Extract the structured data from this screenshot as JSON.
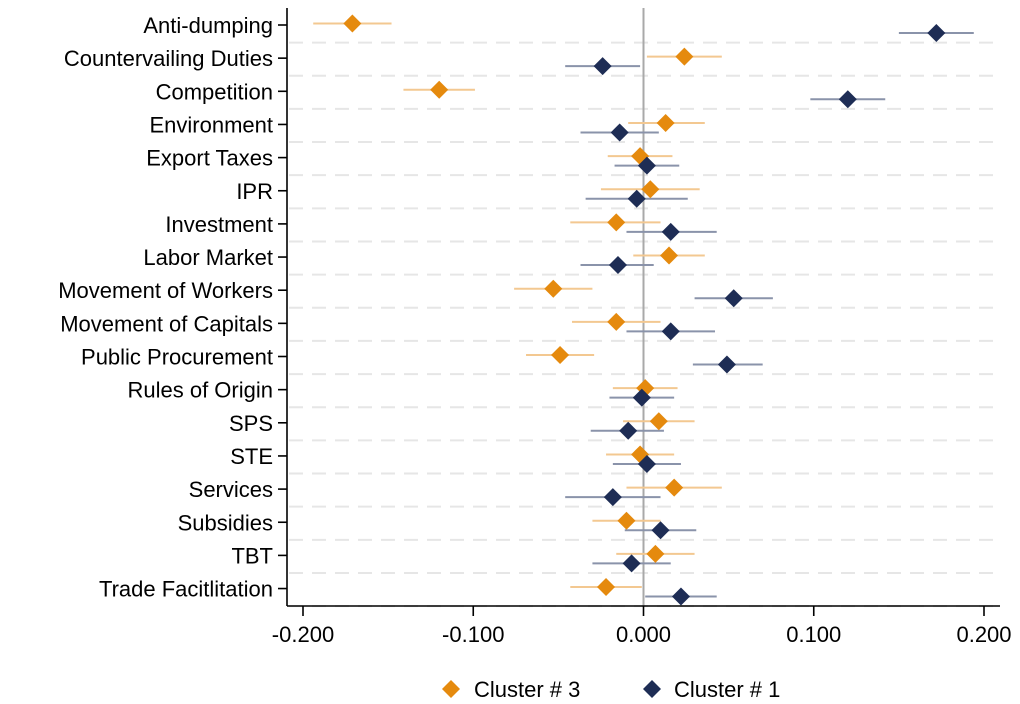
{
  "chart_data": {
    "type": "coefficient-plot",
    "title": "",
    "xlabel": "",
    "ylabel": "",
    "xlim": [
      -0.2,
      0.2
    ],
    "xticks": [
      -0.2,
      -0.1,
      0.0,
      0.1,
      0.2
    ],
    "xtick_labels": [
      "-0.200",
      "-0.100",
      "0.000",
      "0.100",
      "0.200"
    ],
    "reference_line": 0.0,
    "grid": "horizontal dashed",
    "legend_position": "bottom",
    "categories": [
      "Anti-dumping",
      "Countervailing Duties",
      "Competition",
      "Environment",
      "Export Taxes",
      "IPR",
      "Investment",
      "Labor Market",
      "Movement of Workers",
      "Movement of Capitals",
      "Public Procurement",
      "Rules of Origin",
      "SPS",
      "STE",
      "Services",
      "Subsidies",
      "TBT",
      "Trade Facitlitation"
    ],
    "series": [
      {
        "name": "Cluster # 3",
        "color": "#e58a0e",
        "ci_color": "#f3c891",
        "estimate": [
          -0.171,
          0.024,
          -0.12,
          0.013,
          -0.002,
          0.004,
          -0.016,
          0.015,
          -0.053,
          -0.016,
          -0.049,
          0.001,
          0.009,
          -0.002,
          0.018,
          -0.01,
          0.007,
          -0.022
        ],
        "ci_low": [
          -0.194,
          0.002,
          -0.141,
          -0.009,
          -0.021,
          -0.025,
          -0.043,
          -0.006,
          -0.076,
          -0.042,
          -0.069,
          -0.018,
          -0.012,
          -0.022,
          -0.01,
          -0.03,
          -0.016,
          -0.043
        ],
        "ci_high": [
          -0.148,
          0.046,
          -0.099,
          0.036,
          0.017,
          0.033,
          0.01,
          0.036,
          -0.03,
          0.01,
          -0.029,
          0.02,
          0.03,
          0.018,
          0.046,
          0.01,
          0.03,
          -0.001
        ]
      },
      {
        "name": "Cluster # 1",
        "color": "#1e2d55",
        "ci_color": "#8a93aa",
        "estimate": [
          0.172,
          -0.024,
          0.12,
          -0.014,
          0.002,
          -0.004,
          0.016,
          -0.015,
          0.053,
          0.016,
          0.049,
          -0.001,
          -0.009,
          0.002,
          -0.018,
          0.01,
          -0.007,
          0.022
        ],
        "ci_low": [
          0.15,
          -0.046,
          0.098,
          -0.037,
          -0.017,
          -0.034,
          -0.01,
          -0.037,
          0.03,
          -0.01,
          0.029,
          -0.02,
          -0.031,
          -0.018,
          -0.046,
          -0.011,
          -0.03,
          0.001
        ],
        "ci_high": [
          0.194,
          -0.002,
          0.142,
          0.009,
          0.021,
          0.026,
          0.043,
          0.006,
          0.076,
          0.042,
          0.07,
          0.018,
          0.012,
          0.022,
          0.01,
          0.031,
          0.016,
          0.043
        ]
      }
    ]
  }
}
